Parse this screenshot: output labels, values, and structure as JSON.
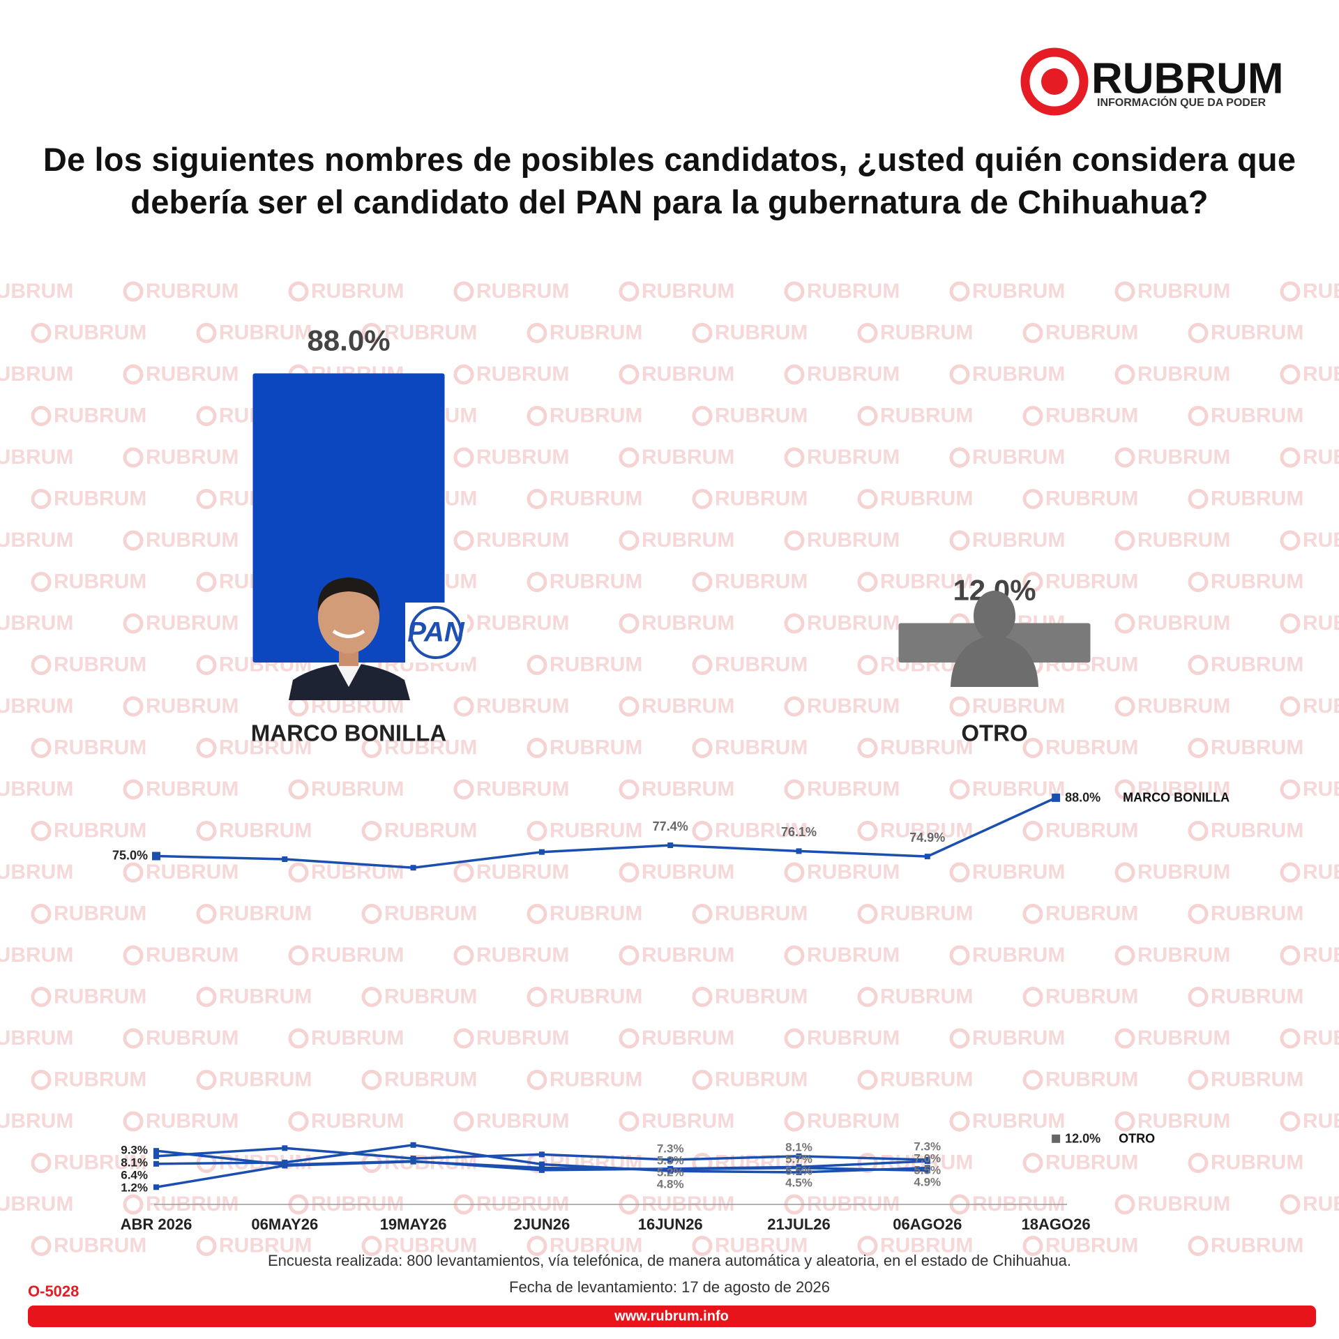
{
  "brand": {
    "name": "RUBRUM",
    "tagline": "INFORMACIÓN QUE DA PODER"
  },
  "chart_data": [
    {
      "type": "bar",
      "title": "De los siguientes nombres de posibles candidatos, ¿usted quién considera que debería ser el candidato del PAN para la gubernatura de Chihuahua?",
      "categories": [
        "MARCO BONILLA",
        "OTRO"
      ],
      "values": [
        88.0,
        12.0
      ],
      "value_labels": [
        "88.0%",
        "12.0%"
      ],
      "colors": [
        "#0d47c0",
        "#7a7a7a"
      ],
      "party": "PAN",
      "ylim": [
        0,
        90
      ]
    },
    {
      "type": "line",
      "categories": [
        "ABR 2026",
        "06MAY26",
        "19MAY26",
        "2JUN26",
        "16JUN26",
        "21JUL26",
        "06AGO26",
        "18AGO26"
      ],
      "ylim": [
        0,
        90
      ],
      "series": [
        {
          "name": "MARCO BONILLA",
          "color": "#1a4fb0",
          "values": [
            75.0,
            74.3,
            72.4,
            75.9,
            77.4,
            76.1,
            74.9,
            88.0
          ],
          "value_labels": [
            "75.0%",
            null,
            null,
            null,
            "77.4%",
            "76.1%",
            "74.9%",
            "88.0%"
          ]
        },
        {
          "color": "#1a4fb0",
          "values": [
            9.3,
            6.2,
            7.0,
            5.0,
            5.3,
            5.7,
            7.0,
            null
          ],
          "value_labels": [
            "9.3%",
            null,
            null,
            null,
            "5.3%",
            "5.7%",
            "7.0%",
            null
          ]
        },
        {
          "color": "#1a4fb0",
          "values": [
            8.1,
            9.9,
            7.6,
            8.5,
            7.3,
            8.1,
            7.3,
            null
          ],
          "value_labels": [
            "8.1%",
            null,
            null,
            null,
            "7.3%",
            "8.1%",
            "7.3%",
            null
          ]
        },
        {
          "color": "#1a4fb0",
          "values": [
            6.4,
            6.7,
            10.6,
            6.3,
            4.8,
            4.5,
            5.5,
            null
          ],
          "value_labels": [
            "6.4%",
            null,
            null,
            null,
            "4.8%",
            "4.5%",
            "5.5%",
            null
          ]
        },
        {
          "color": "#1a4fb0",
          "values": [
            1.2,
            6.0,
            6.9,
            5.5,
            5.2,
            5.5,
            4.9,
            null
          ],
          "value_labels": [
            "1.2%",
            null,
            null,
            null,
            "5.2%",
            "5.5%",
            "4.9%",
            null
          ]
        },
        {
          "name": "OTRO",
          "color": "#666666",
          "values": [
            null,
            null,
            null,
            null,
            null,
            null,
            null,
            12.0
          ],
          "value_labels": [
            null,
            null,
            null,
            null,
            null,
            null,
            null,
            "12.0%"
          ]
        }
      ]
    }
  ],
  "footer": {
    "note": "Encuesta realizada: 800 levantamientos, vía telefónica, de manera automática y aleatoria, en el estado de Chihuahua.",
    "date": "Fecha de levantamiento: 17 de agosto de 2026",
    "code": "O-5028",
    "url": "www.rubrum.info"
  }
}
